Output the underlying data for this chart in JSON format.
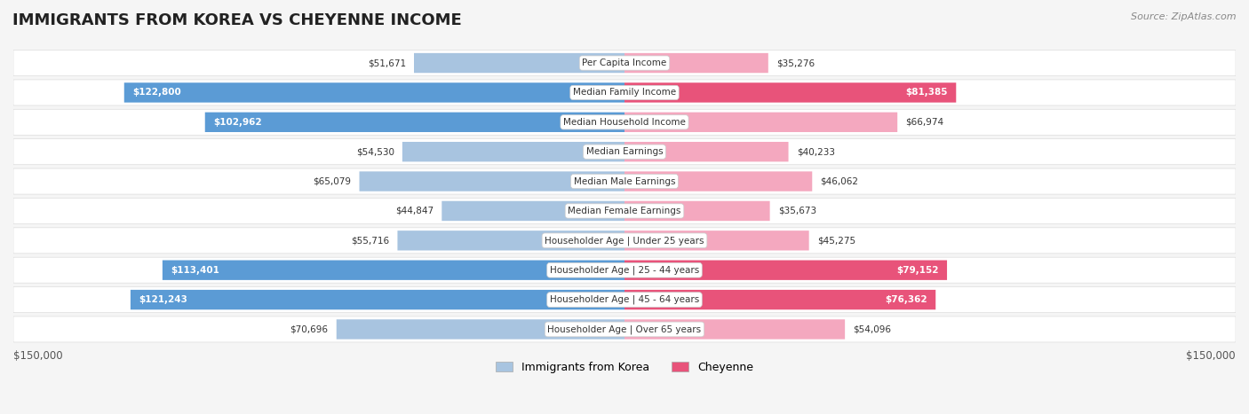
{
  "title": "IMMIGRANTS FROM KOREA VS CHEYENNE INCOME",
  "source": "Source: ZipAtlas.com",
  "categories": [
    "Per Capita Income",
    "Median Family Income",
    "Median Household Income",
    "Median Earnings",
    "Median Male Earnings",
    "Median Female Earnings",
    "Householder Age | Under 25 years",
    "Householder Age | 25 - 44 years",
    "Householder Age | 45 - 64 years",
    "Householder Age | Over 65 years"
  ],
  "korea_values": [
    51671,
    122800,
    102962,
    54530,
    65079,
    44847,
    55716,
    113401,
    121243,
    70696
  ],
  "cheyenne_values": [
    35276,
    81385,
    66974,
    40233,
    46062,
    35673,
    45275,
    79152,
    76362,
    54096
  ],
  "korea_labels": [
    "$51,671",
    "$122,800",
    "$102,962",
    "$54,530",
    "$65,079",
    "$44,847",
    "$55,716",
    "$113,401",
    "$121,243",
    "$70,696"
  ],
  "cheyenne_labels": [
    "$35,276",
    "$81,385",
    "$66,974",
    "$40,233",
    "$46,062",
    "$35,673",
    "$45,275",
    "$79,152",
    "$76,362",
    "$54,096"
  ],
  "max_value": 150000,
  "korea_color_light": "#a8c4e0",
  "korea_color_dark": "#5b9bd5",
  "cheyenne_color_light": "#f4a8bf",
  "cheyenne_color_dark": "#e8537a",
  "background_color": "#f5f5f5",
  "row_bg_color": "#ffffff",
  "xlabel_left": "$150,000",
  "xlabel_right": "$150,000",
  "legend_korea": "Immigrants from Korea",
  "legend_cheyenne": "Cheyenne"
}
